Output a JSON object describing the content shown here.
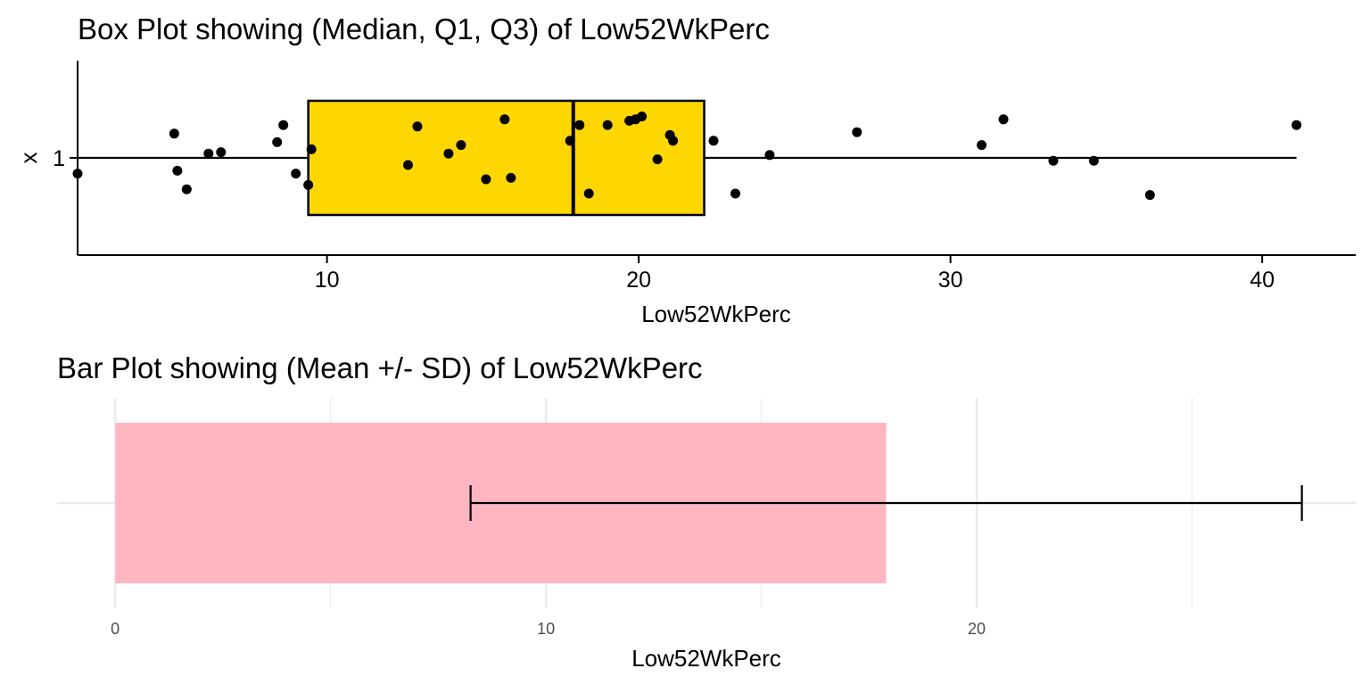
{
  "chart_data": [
    {
      "type": "box",
      "title": "Box Plot showing (Median, Q1, Q3) of Low52WkPerc",
      "xlabel": "Low52WkPerc",
      "ylabel": "x",
      "category": "1",
      "xlim": [
        2,
        43
      ],
      "xticks": [
        10,
        20,
        30,
        40
      ],
      "stats": {
        "min": 2.0,
        "q1": 9.4,
        "median": 17.9,
        "q3": 22.1,
        "max": 41.1
      },
      "colors": {
        "box_fill": "#FFD700",
        "outline": "#000000",
        "points": "#000000"
      },
      "points": [
        [
          2.0,
          -0.11
        ],
        [
          5.1,
          0.17
        ],
        [
          5.2,
          -0.09
        ],
        [
          5.5,
          -0.22
        ],
        [
          6.2,
          0.03
        ],
        [
          6.6,
          0.04
        ],
        [
          8.4,
          0.11
        ],
        [
          8.6,
          0.23
        ],
        [
          9.0,
          -0.11
        ],
        [
          9.4,
          -0.19
        ],
        [
          9.5,
          0.06
        ],
        [
          12.6,
          -0.05
        ],
        [
          12.9,
          0.22
        ],
        [
          13.9,
          0.03
        ],
        [
          14.3,
          0.09
        ],
        [
          15.1,
          -0.15
        ],
        [
          15.7,
          0.27
        ],
        [
          15.9,
          -0.14
        ],
        [
          17.8,
          0.12
        ],
        [
          18.1,
          0.23
        ],
        [
          18.4,
          -0.25
        ],
        [
          19.0,
          0.23
        ],
        [
          19.7,
          0.26
        ],
        [
          19.9,
          0.27
        ],
        [
          20.1,
          0.29
        ],
        [
          20.6,
          -0.01
        ],
        [
          21.0,
          0.16
        ],
        [
          21.1,
          0.12
        ],
        [
          22.4,
          0.12
        ],
        [
          23.1,
          -0.25
        ],
        [
          24.2,
          0.02
        ],
        [
          27.0,
          0.18
        ],
        [
          31.0,
          0.09
        ],
        [
          31.7,
          0.27
        ],
        [
          33.3,
          -0.02
        ],
        [
          34.6,
          -0.02
        ],
        [
          36.4,
          -0.26
        ],
        [
          41.1,
          0.23
        ]
      ]
    },
    {
      "type": "bar",
      "title": "Bar Plot showing (Mean +/- SD) of Low52WkPerc",
      "xlabel": "Low52WkPerc",
      "xlim": [
        -1.35,
        28.8
      ],
      "xticks": [
        0,
        10,
        20
      ],
      "minor_gridlines": [
        5,
        15,
        25
      ],
      "grid": true,
      "mean": 17.9,
      "sd": 9.65,
      "colors": {
        "bar_fill": "#FFB6C1",
        "errorbar": "#000000",
        "grid": "#ebebeb"
      }
    }
  ]
}
